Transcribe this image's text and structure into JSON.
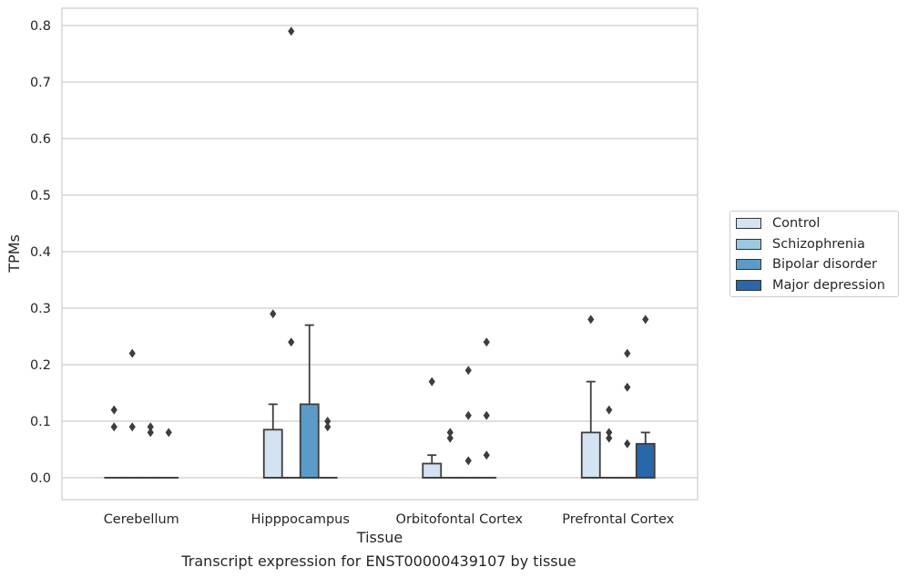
{
  "chart_data": {
    "type": "box",
    "title": "",
    "xlabel": "Tissue",
    "ylabel": "TPMs",
    "caption": "Transcript expression for ENST00000439107 by tissue",
    "ylim": [
      -0.04,
      0.83
    ],
    "yticks": [
      "0.0",
      "0.1",
      "0.2",
      "0.3",
      "0.4",
      "0.5",
      "0.6",
      "0.7",
      "0.8"
    ],
    "grid": true,
    "legend_position": "right",
    "categories": [
      "Cerebellum",
      "Hipppocampus",
      "Orbitofontal Cortex",
      "Prefrontal Cortex"
    ],
    "series": [
      {
        "name": "Control",
        "color": "#d3e3f2",
        "boxes": [
          {
            "q1": 0,
            "median": 0,
            "q3": 0,
            "whisker_low": 0,
            "whisker_high": 0,
            "outliers": [
              0.12,
              0.09
            ]
          },
          {
            "q1": 0,
            "median": 0,
            "q3": 0.085,
            "whisker_low": 0,
            "whisker_high": 0.13,
            "outliers": [
              0.29
            ]
          },
          {
            "q1": 0,
            "median": 0,
            "q3": 0.025,
            "whisker_low": 0,
            "whisker_high": 0.04,
            "outliers": [
              0.17
            ]
          },
          {
            "q1": 0,
            "median": 0,
            "q3": 0.08,
            "whisker_low": 0,
            "whisker_high": 0.17,
            "outliers": [
              0.28
            ]
          }
        ]
      },
      {
        "name": "Schizophrenia",
        "color": "#9ac8e0",
        "boxes": [
          {
            "q1": 0,
            "median": 0,
            "q3": 0,
            "whisker_low": 0,
            "whisker_high": 0,
            "outliers": [
              0.22,
              0.09
            ]
          },
          {
            "q1": 0,
            "median": 0,
            "q3": 0,
            "whisker_low": 0,
            "whisker_high": 0,
            "outliers": [
              0.79,
              0.24
            ]
          },
          {
            "q1": 0,
            "median": 0,
            "q3": 0,
            "whisker_low": 0,
            "whisker_high": 0,
            "outliers": [
              0.08,
              0.07
            ]
          },
          {
            "q1": 0,
            "median": 0,
            "q3": 0,
            "whisker_low": 0,
            "whisker_high": 0,
            "outliers": [
              0.12,
              0.08,
              0.07
            ]
          }
        ]
      },
      {
        "name": "Bipolar disorder",
        "color": "#5a9bc8",
        "boxes": [
          {
            "q1": 0,
            "median": 0,
            "q3": 0,
            "whisker_low": 0,
            "whisker_high": 0,
            "outliers": [
              0.09,
              0.08
            ]
          },
          {
            "q1": 0,
            "median": 0,
            "q3": 0.13,
            "whisker_low": 0,
            "whisker_high": 0.27,
            "outliers": []
          },
          {
            "q1": 0,
            "median": 0,
            "q3": 0,
            "whisker_low": 0,
            "whisker_high": 0,
            "outliers": [
              0.19,
              0.11,
              0.03
            ]
          },
          {
            "q1": 0,
            "median": 0,
            "q3": 0,
            "whisker_low": 0,
            "whisker_high": 0,
            "outliers": [
              0.22,
              0.16,
              0.06
            ]
          }
        ]
      },
      {
        "name": "Major depression",
        "color": "#2867a8",
        "boxes": [
          {
            "q1": 0,
            "median": 0,
            "q3": 0,
            "whisker_low": 0,
            "whisker_high": 0,
            "outliers": [
              0.08
            ]
          },
          {
            "q1": 0,
            "median": 0,
            "q3": 0,
            "whisker_low": 0,
            "whisker_high": 0,
            "outliers": [
              0.1,
              0.09
            ]
          },
          {
            "q1": 0,
            "median": 0,
            "q3": 0,
            "whisker_low": 0,
            "whisker_high": 0,
            "outliers": [
              0.24,
              0.11,
              0.04
            ]
          },
          {
            "q1": 0,
            "median": 0,
            "q3": 0.06,
            "whisker_low": 0,
            "whisker_high": 0.08,
            "outliers": [
              0.28
            ]
          }
        ]
      }
    ]
  }
}
